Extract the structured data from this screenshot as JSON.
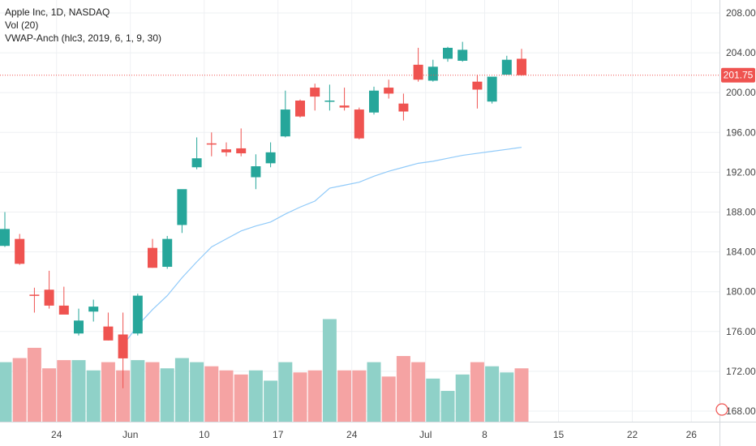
{
  "legend": {
    "line1": "Apple Inc, 1D, NASDAQ",
    "line2": "Vol (20)",
    "line3": "VWAP-Anch (hlc3, 2019, 6, 1, 9, 30)"
  },
  "colors": {
    "up": "#26a69a",
    "down": "#ef5350",
    "vol_up": "#8fd1c8",
    "vol_down": "#f5a3a3",
    "vwap": "#90caf9",
    "grid": "#eef0f3",
    "last_price": "#ef5350"
  },
  "chart_data": {
    "type": "candlestick",
    "title": "Apple Inc, 1D, NASDAQ",
    "ylim": [
      166.5,
      209.5
    ],
    "y_ticks": [
      "208.00",
      "204.00",
      "200.00",
      "196.00",
      "192.00",
      "188.00",
      "184.00",
      "180.00",
      "176.00",
      "172.00",
      "168.00"
    ],
    "y_tick_values": [
      208,
      204,
      200,
      196,
      192,
      188,
      184,
      180,
      176,
      172,
      168
    ],
    "x_ticks": [
      {
        "label": "24",
        "slot": 3.5
      },
      {
        "label": "Jun",
        "slot": 8.5
      },
      {
        "label": "10",
        "slot": 13.5
      },
      {
        "label": "17",
        "slot": 18.5
      },
      {
        "label": "24",
        "slot": 23.5
      },
      {
        "label": "Jul",
        "slot": 28.5
      },
      {
        "label": "8",
        "slot": 32.5
      },
      {
        "label": "15",
        "slot": 37.5
      },
      {
        "label": "22",
        "slot": 42.5
      },
      {
        "label": "26",
        "slot": 46.5
      }
    ],
    "last_price": 201.75,
    "last_price_label": "201.75",
    "candles": [
      {
        "slot": 0,
        "o": 184.6,
        "h": 188.0,
        "l": 184.5,
        "c": 186.3
      },
      {
        "slot": 1,
        "o": 185.3,
        "h": 185.8,
        "l": 182.7,
        "c": 182.8
      },
      {
        "slot": 2,
        "o": 179.7,
        "h": 180.4,
        "l": 177.9,
        "c": 179.6
      },
      {
        "slot": 3,
        "o": 180.2,
        "h": 182.1,
        "l": 178.3,
        "c": 178.6
      },
      {
        "slot": 4,
        "o": 178.6,
        "h": 180.5,
        "l": 177.8,
        "c": 177.7
      },
      {
        "slot": 5,
        "o": 175.8,
        "h": 178.3,
        "l": 175.6,
        "c": 177.1
      },
      {
        "slot": 6,
        "o": 178.0,
        "h": 179.2,
        "l": 177.0,
        "c": 178.5
      },
      {
        "slot": 7,
        "o": 176.5,
        "h": 177.9,
        "l": 175.1,
        "c": 175.1
      },
      {
        "slot": 8,
        "o": 175.7,
        "h": 177.9,
        "l": 170.3,
        "c": 173.3
      },
      {
        "slot": 9,
        "o": 175.8,
        "h": 179.8,
        "l": 175.6,
        "c": 179.6
      },
      {
        "slot": 10,
        "o": 184.4,
        "h": 185.3,
        "l": 182.4,
        "c": 182.4
      },
      {
        "slot": 11,
        "o": 182.5,
        "h": 185.6,
        "l": 182.3,
        "c": 185.3
      },
      {
        "slot": 12,
        "o": 186.7,
        "h": 190.2,
        "l": 185.9,
        "c": 190.3
      },
      {
        "slot": 13,
        "o": 192.5,
        "h": 195.5,
        "l": 192.3,
        "c": 193.4
      },
      {
        "slot": 14,
        "o": 194.9,
        "h": 196.0,
        "l": 193.6,
        "c": 194.8
      },
      {
        "slot": 15,
        "o": 194.3,
        "h": 195.0,
        "l": 193.6,
        "c": 194.0
      },
      {
        "slot": 16,
        "o": 194.4,
        "h": 196.4,
        "l": 193.6,
        "c": 193.9
      },
      {
        "slot": 17,
        "o": 191.5,
        "h": 193.8,
        "l": 190.3,
        "c": 192.6
      },
      {
        "slot": 18,
        "o": 192.9,
        "h": 195.0,
        "l": 192.5,
        "c": 194.0
      },
      {
        "slot": 19,
        "o": 195.6,
        "h": 200.2,
        "l": 195.5,
        "c": 198.3
      },
      {
        "slot": 20,
        "o": 199.2,
        "h": 199.3,
        "l": 197.5,
        "c": 197.6
      },
      {
        "slot": 21,
        "o": 200.5,
        "h": 200.9,
        "l": 198.2,
        "c": 199.6
      },
      {
        "slot": 22,
        "o": 199.2,
        "h": 200.8,
        "l": 198.2,
        "c": 199.2
      },
      {
        "slot": 23,
        "o": 198.7,
        "h": 200.5,
        "l": 198.2,
        "c": 198.5
      },
      {
        "slot": 24,
        "o": 198.3,
        "h": 198.5,
        "l": 195.3,
        "c": 195.4
      },
      {
        "slot": 25,
        "o": 198.0,
        "h": 200.6,
        "l": 197.8,
        "c": 200.2
      },
      {
        "slot": 26,
        "o": 200.5,
        "h": 201.3,
        "l": 199.4,
        "c": 199.9
      },
      {
        "slot": 27,
        "o": 198.9,
        "h": 199.9,
        "l": 197.2,
        "c": 198.1
      },
      {
        "slot": 28,
        "o": 202.8,
        "h": 204.5,
        "l": 201.1,
        "c": 201.3
      },
      {
        "slot": 29,
        "o": 201.2,
        "h": 203.3,
        "l": 201.1,
        "c": 202.6
      },
      {
        "slot": 30,
        "o": 203.4,
        "h": 204.6,
        "l": 203.1,
        "c": 204.5
      },
      {
        "slot": 31,
        "o": 203.2,
        "h": 205.1,
        "l": 203.1,
        "c": 204.3
      },
      {
        "slot": 32,
        "o": 201.1,
        "h": 201.8,
        "l": 198.4,
        "c": 200.3
      },
      {
        "slot": 33,
        "o": 199.1,
        "h": 201.5,
        "l": 198.9,
        "c": 201.6
      },
      {
        "slot": 34,
        "o": 201.8,
        "h": 203.7,
        "l": 201.9,
        "c": 203.3
      },
      {
        "slot": 35,
        "o": 203.4,
        "h": 204.4,
        "l": 201.7,
        "c": 201.75
      }
    ],
    "volume_series": {
      "name": "Vol (20)",
      "ylim": [
        0,
        10
      ],
      "values": [
        2.9,
        3.1,
        3.6,
        2.6,
        3.0,
        3.0,
        2.5,
        2.9,
        2.5,
        3.0,
        2.9,
        2.6,
        3.1,
        2.9,
        2.7,
        2.5,
        2.3,
        2.5,
        2.0,
        2.9,
        2.4,
        2.5,
        5.0,
        2.5,
        2.5,
        2.9,
        2.2,
        3.2,
        2.9,
        2.1,
        1.5,
        2.3,
        2.9,
        2.7,
        2.4,
        2.6
      ]
    },
    "vwap_series": {
      "name": "VWAP-Anch (hlc3, 2019, 6, 1, 9, 30)",
      "points": [
        {
          "slot": 8,
          "v": 174.6
        },
        {
          "slot": 9,
          "v": 176.6
        },
        {
          "slot": 10,
          "v": 178.2
        },
        {
          "slot": 11,
          "v": 179.6
        },
        {
          "slot": 12,
          "v": 181.4
        },
        {
          "slot": 13,
          "v": 183.0
        },
        {
          "slot": 14,
          "v": 184.5
        },
        {
          "slot": 15,
          "v": 185.3
        },
        {
          "slot": 16,
          "v": 186.1
        },
        {
          "slot": 17,
          "v": 186.6
        },
        {
          "slot": 18,
          "v": 187.0
        },
        {
          "slot": 19,
          "v": 187.8
        },
        {
          "slot": 20,
          "v": 188.5
        },
        {
          "slot": 21,
          "v": 189.1
        },
        {
          "slot": 22,
          "v": 190.4
        },
        {
          "slot": 23,
          "v": 190.7
        },
        {
          "slot": 24,
          "v": 191.0
        },
        {
          "slot": 25,
          "v": 191.6
        },
        {
          "slot": 26,
          "v": 192.1
        },
        {
          "slot": 27,
          "v": 192.5
        },
        {
          "slot": 28,
          "v": 192.9
        },
        {
          "slot": 29,
          "v": 193.1
        },
        {
          "slot": 30,
          "v": 193.4
        },
        {
          "slot": 31,
          "v": 193.7
        },
        {
          "slot": 32,
          "v": 193.9
        },
        {
          "slot": 33,
          "v": 194.1
        },
        {
          "slot": 34,
          "v": 194.3
        },
        {
          "slot": 35,
          "v": 194.5
        }
      ]
    },
    "grid": true
  }
}
